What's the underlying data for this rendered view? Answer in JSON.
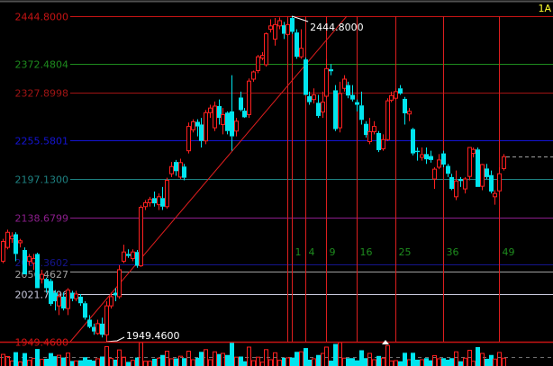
{
  "corner_label": "1A",
  "chart_data": {
    "type": "candlestick",
    "candle_format": [
      "open",
      "high",
      "low",
      "close"
    ],
    "colors": {
      "up": "#ff2020",
      "down": "#00e5ee",
      "background": "#000000"
    },
    "ylim": [
      1949.46,
      2444.8
    ],
    "candles": [
      [
        2072,
        2106,
        2069,
        2102
      ],
      [
        2093,
        2120,
        2090,
        2116
      ],
      [
        2106,
        2116,
        2100,
        2110
      ],
      [
        2113,
        2116,
        2072,
        2083
      ],
      [
        2100,
        2106,
        2093,
        2103
      ],
      [
        2089,
        2093,
        2052,
        2052
      ],
      [
        2072,
        2083,
        2065,
        2079
      ],
      [
        2069,
        2083,
        2059,
        2076
      ],
      [
        2083,
        2085,
        2031,
        2031
      ],
      [
        2045,
        2059,
        2038,
        2052
      ],
      [
        2045,
        2047,
        2024,
        2031
      ],
      [
        2042,
        2045,
        2004,
        2007
      ],
      [
        2024,
        2028,
        1997,
        2011
      ],
      [
        2004,
        2024,
        1990,
        2018
      ],
      [
        2018,
        2024,
        1997,
        2000
      ],
      [
        2000,
        2031,
        1990,
        2028
      ],
      [
        2024,
        2027,
        2011,
        2015
      ],
      [
        2015,
        2027,
        2011,
        2022
      ],
      [
        2018,
        2022,
        2004,
        2008
      ],
      [
        2008,
        2011,
        1983,
        1986
      ],
      [
        1983,
        1990,
        1970,
        1972
      ],
      [
        1972,
        1977,
        1960,
        1965
      ],
      [
        1962,
        1983,
        1960,
        1977
      ],
      [
        1977,
        1986,
        1956,
        1960
      ],
      [
        1960,
        2011,
        1949.46,
        2004
      ],
      [
        2004,
        2024,
        2000,
        2018
      ],
      [
        2024,
        2031,
        2011,
        2020
      ],
      [
        2018,
        2066,
        2015,
        2059
      ],
      [
        2072,
        2097,
        2069,
        2086
      ],
      [
        2083,
        2090,
        2077,
        2080
      ],
      [
        2076,
        2090,
        2072,
        2086
      ],
      [
        2086,
        2089,
        2062,
        2065
      ],
      [
        2065,
        2157,
        2063,
        2154
      ],
      [
        2155,
        2165,
        2150,
        2161
      ],
      [
        2161,
        2170,
        2155,
        2166
      ],
      [
        2168,
        2178,
        2155,
        2160
      ],
      [
        2158,
        2175,
        2150,
        2170
      ],
      [
        2168,
        2185,
        2150,
        2155
      ],
      [
        2155,
        2199,
        2152,
        2195
      ],
      [
        2205,
        2223,
        2200,
        2216
      ],
      [
        2223,
        2226,
        2202,
        2209
      ],
      [
        2200,
        2228,
        2197,
        2222
      ],
      [
        2216,
        2220,
        2195,
        2199
      ],
      [
        2240,
        2283,
        2236,
        2277
      ],
      [
        2272,
        2288,
        2268,
        2284
      ],
      [
        2284,
        2288,
        2262,
        2277
      ],
      [
        2280,
        2290,
        2245,
        2255
      ],
      [
        2255,
        2302,
        2250,
        2298
      ],
      [
        2298,
        2310,
        2290,
        2305
      ],
      [
        2275,
        2315,
        2270,
        2308
      ],
      [
        2308,
        2318,
        2280,
        2290
      ],
      [
        2280,
        2305,
        2265,
        2295
      ],
      [
        2298,
        2300,
        2265,
        2270
      ],
      [
        2300,
        2355,
        2240,
        2262
      ],
      [
        2270,
        2290,
        2262,
        2285
      ],
      [
        2321,
        2330,
        2300,
        2302
      ],
      [
        2301,
        2305,
        2290,
        2291
      ],
      [
        2295,
        2350,
        2290,
        2346
      ],
      [
        2349,
        2362,
        2345,
        2360
      ],
      [
        2362,
        2386,
        2358,
        2383
      ],
      [
        2381,
        2390,
        2378,
        2385
      ],
      [
        2371,
        2420,
        2368,
        2418
      ],
      [
        2425,
        2440,
        2420,
        2430
      ],
      [
        2410,
        2442,
        2400,
        2432
      ],
      [
        2430,
        2443,
        2425,
        2438
      ],
      [
        2431,
        2436,
        2410,
        2418
      ],
      [
        2417,
        2440,
        2414,
        2432
      ],
      [
        2442,
        2444.8,
        2418,
        2421
      ],
      [
        2420,
        2425,
        2380,
        2383
      ],
      [
        2383,
        2425,
        2380,
        2396
      ],
      [
        2379,
        2382,
        2325,
        2325
      ],
      [
        2323,
        2330,
        2310,
        2314
      ],
      [
        2318,
        2335,
        2312,
        2325
      ],
      [
        2313,
        2325,
        2290,
        2293
      ],
      [
        2299,
        2330,
        2290,
        2314
      ],
      [
        2323,
        2380,
        2320,
        2365
      ],
      [
        2364,
        2372,
        2355,
        2361
      ],
      [
        2332,
        2340,
        2270,
        2273
      ],
      [
        2275,
        2345,
        2268,
        2327
      ],
      [
        2335,
        2355,
        2330,
        2349
      ],
      [
        2340,
        2345,
        2320,
        2324
      ],
      [
        2325,
        2340,
        2315,
        2318
      ],
      [
        2314,
        2318,
        2300,
        2310
      ],
      [
        2309,
        2330,
        2280,
        2287
      ],
      [
        2281,
        2285,
        2260,
        2264
      ],
      [
        2254,
        2290,
        2250,
        2269
      ],
      [
        2269,
        2285,
        2265,
        2277
      ],
      [
        2267,
        2270,
        2238,
        2241
      ],
      [
        2243,
        2265,
        2240,
        2257
      ],
      [
        2257,
        2320,
        2255,
        2316
      ],
      [
        2317,
        2330,
        2314,
        2324
      ],
      [
        2320,
        2335,
        2318,
        2330
      ],
      [
        2335,
        2340,
        2325,
        2327
      ],
      [
        2319,
        2322,
        2280,
        2297
      ],
      [
        2296,
        2305,
        2285,
        2300
      ],
      [
        2273,
        2275,
        2233,
        2236
      ],
      [
        2240,
        2245,
        2225,
        2238
      ],
      [
        2230,
        2245,
        2225,
        2234
      ],
      [
        2235,
        2245,
        2220,
        2227
      ],
      [
        2232,
        2240,
        2222,
        2226
      ],
      [
        2197,
        2215,
        2182,
        2212
      ],
      [
        2215,
        2235,
        2212,
        2226
      ],
      [
        2236,
        2240,
        2215,
        2219
      ],
      [
        2217,
        2220,
        2200,
        2205
      ],
      [
        2200,
        2205,
        2180,
        2182
      ],
      [
        2170,
        2210,
        2165,
        2194
      ],
      [
        2197,
        2200,
        2185,
        2194
      ],
      [
        2182,
        2200,
        2175,
        2197
      ],
      [
        2201,
        2245,
        2195,
        2245
      ],
      [
        2236,
        2245,
        2230,
        2242
      ],
      [
        2242,
        2245,
        2185,
        2185
      ],
      [
        2186,
        2220,
        2180,
        2219
      ],
      [
        2213,
        2220,
        2197,
        2200
      ],
      [
        2203,
        2210,
        2175,
        2178
      ],
      [
        2170,
        2180,
        2158,
        2175
      ],
      [
        2179,
        2215,
        2172,
        2205
      ],
      [
        2213,
        2235,
        2210,
        2231
      ]
    ],
    "levels": [
      {
        "label": "2444.8000",
        "value": 2444.8,
        "color": "#c81414"
      },
      {
        "label": "2372.4804",
        "value": 2372.4804,
        "color": "#1e8c1e"
      },
      {
        "label": "2327.8998",
        "value": 2327.8998,
        "color": "#a01414"
      },
      {
        "label": "2255.5801",
        "value": 2255.5801,
        "color": "#1414d2"
      },
      {
        "label": "2197.1300",
        "value": 2197.13,
        "color": "#1e8282"
      },
      {
        "label": "2138.6799",
        "value": 2138.6799,
        "color": "#8c1e8c"
      },
      {
        "label": "2067.3602",
        "value": 2067.3602,
        "color": "#14148c"
      },
      {
        "label": "2056.4627",
        "value": 2056.4627,
        "color": "#a0a0a0"
      },
      {
        "label": "2021.7796",
        "value": 2021.7796,
        "color": "#c8c8dc"
      },
      {
        "label": "1949.4600",
        "value": 1949.46,
        "color": "#dc1414"
      }
    ],
    "annotations": {
      "high": {
        "label": "2444.8000",
        "value": 2444.8
      },
      "low": {
        "label": "1949.4600",
        "value": 1949.46
      }
    },
    "time_cycle": {
      "start_candle": 66,
      "offsets": [
        0,
        1,
        4,
        9,
        16,
        25,
        36,
        49
      ],
      "labels": [
        "",
        "1",
        "4",
        "9",
        "16",
        "25",
        "36",
        "49"
      ],
      "line_color": "#dc1e1e",
      "label_color": "#1e8c1e"
    },
    "last_price_line": {
      "value": 2231,
      "color": "#a0a0a0",
      "style": "dashed"
    }
  }
}
